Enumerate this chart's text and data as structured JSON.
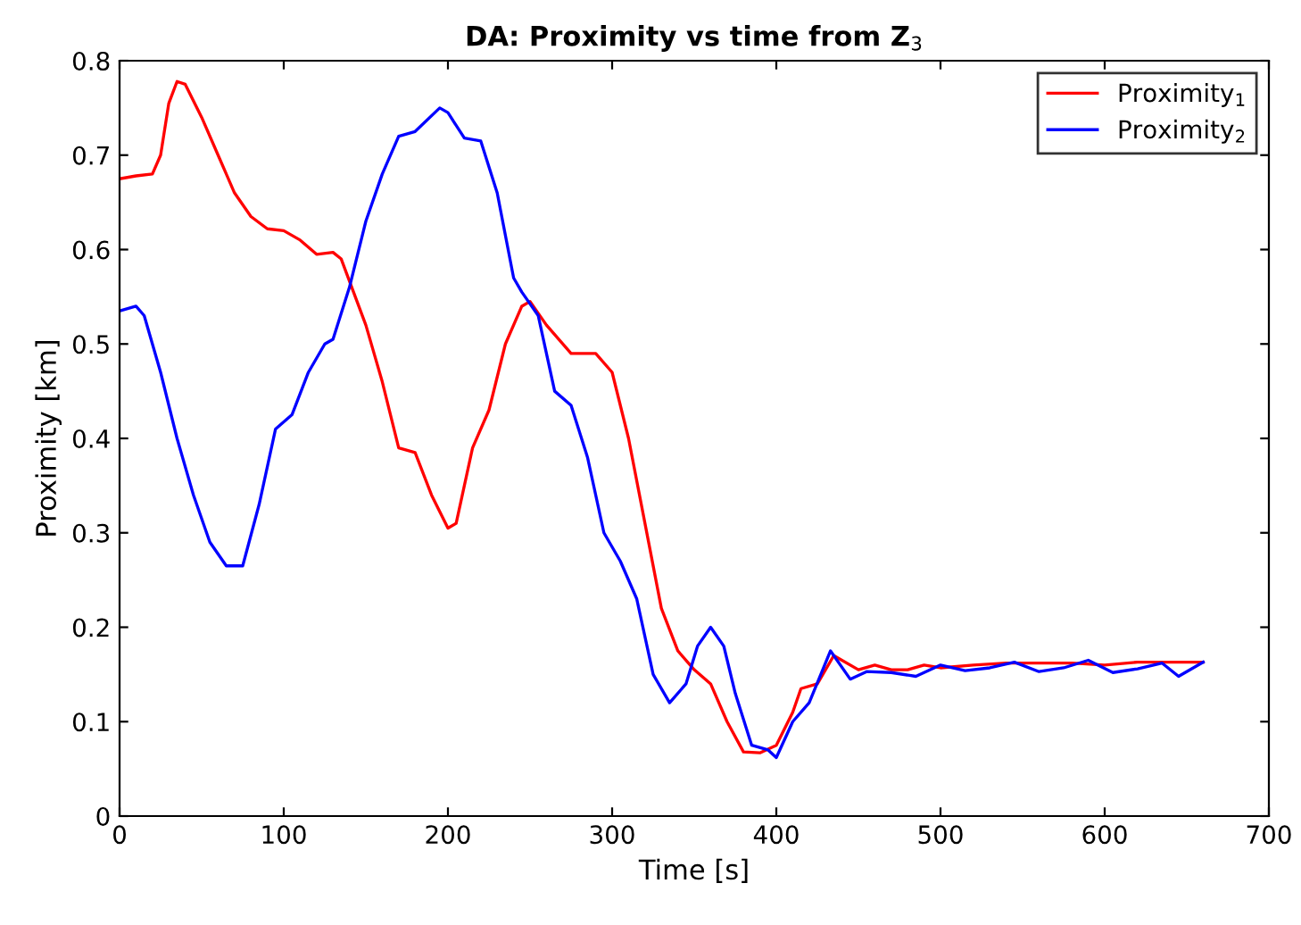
{
  "chart_data": {
    "type": "line",
    "title": "DA: Proximity vs time from Z$_{3}$",
    "xlabel": "Time [s]",
    "ylabel": "Proximity [km]",
    "xlim": [
      0,
      700
    ],
    "ylim": [
      0,
      0.8
    ],
    "xticks": [
      0,
      100,
      200,
      300,
      400,
      500,
      600,
      700
    ],
    "yticks": [
      0,
      0.1,
      0.2,
      0.3,
      0.4,
      0.5,
      0.6,
      0.7,
      0.8
    ],
    "grid": false,
    "legend": "top right",
    "marker": "none",
    "line_style": "solid",
    "series": [
      {
        "name": "Proximity$_{1}$",
        "color": "#ff0000",
        "x": [
          0,
          10,
          20,
          25,
          30,
          35,
          40,
          50,
          60,
          70,
          80,
          90,
          100,
          110,
          120,
          130,
          135,
          150,
          160,
          170,
          180,
          190,
          200,
          205,
          215,
          225,
          235,
          245,
          250,
          260,
          275,
          290,
          300,
          310,
          320,
          330,
          340,
          350,
          360,
          370,
          380,
          390,
          400,
          410,
          415,
          425,
          435,
          450,
          460,
          470,
          480,
          490,
          500,
          520,
          540,
          560,
          580,
          600,
          620,
          640,
          660
        ],
        "values": [
          0.675,
          0.678,
          0.68,
          0.7,
          0.755,
          0.778,
          0.775,
          0.74,
          0.7,
          0.66,
          0.635,
          0.622,
          0.62,
          0.61,
          0.595,
          0.597,
          0.59,
          0.52,
          0.46,
          0.39,
          0.385,
          0.34,
          0.305,
          0.31,
          0.39,
          0.43,
          0.5,
          0.54,
          0.545,
          0.52,
          0.49,
          0.49,
          0.47,
          0.4,
          0.31,
          0.22,
          0.175,
          0.155,
          0.14,
          0.1,
          0.068,
          0.067,
          0.075,
          0.11,
          0.135,
          0.14,
          0.17,
          0.155,
          0.16,
          0.155,
          0.155,
          0.16,
          0.157,
          0.16,
          0.162,
          0.162,
          0.162,
          0.16,
          0.163,
          0.163,
          0.163
        ]
      },
      {
        "name": "Proximity$_{2}$",
        "color": "#0000ff",
        "x": [
          0,
          10,
          15,
          25,
          35,
          45,
          55,
          65,
          75,
          85,
          95,
          105,
          115,
          125,
          130,
          140,
          150,
          160,
          170,
          180,
          195,
          200,
          210,
          220,
          230,
          240,
          245,
          255,
          265,
          275,
          285,
          295,
          305,
          315,
          325,
          335,
          345,
          352,
          360,
          368,
          375,
          385,
          395,
          400,
          410,
          420,
          433,
          445,
          455,
          470,
          485,
          500,
          515,
          530,
          545,
          560,
          575,
          590,
          605,
          620,
          635,
          645,
          660
        ],
        "values": [
          0.535,
          0.54,
          0.53,
          0.47,
          0.4,
          0.34,
          0.29,
          0.265,
          0.265,
          0.33,
          0.41,
          0.425,
          0.47,
          0.5,
          0.505,
          0.56,
          0.63,
          0.68,
          0.72,
          0.725,
          0.75,
          0.745,
          0.718,
          0.715,
          0.66,
          0.57,
          0.555,
          0.53,
          0.45,
          0.435,
          0.38,
          0.3,
          0.27,
          0.23,
          0.15,
          0.12,
          0.14,
          0.18,
          0.2,
          0.18,
          0.13,
          0.075,
          0.07,
          0.062,
          0.1,
          0.12,
          0.175,
          0.145,
          0.153,
          0.152,
          0.148,
          0.16,
          0.154,
          0.157,
          0.163,
          0.153,
          0.157,
          0.165,
          0.152,
          0.156,
          0.162,
          0.148,
          0.163
        ]
      }
    ]
  }
}
